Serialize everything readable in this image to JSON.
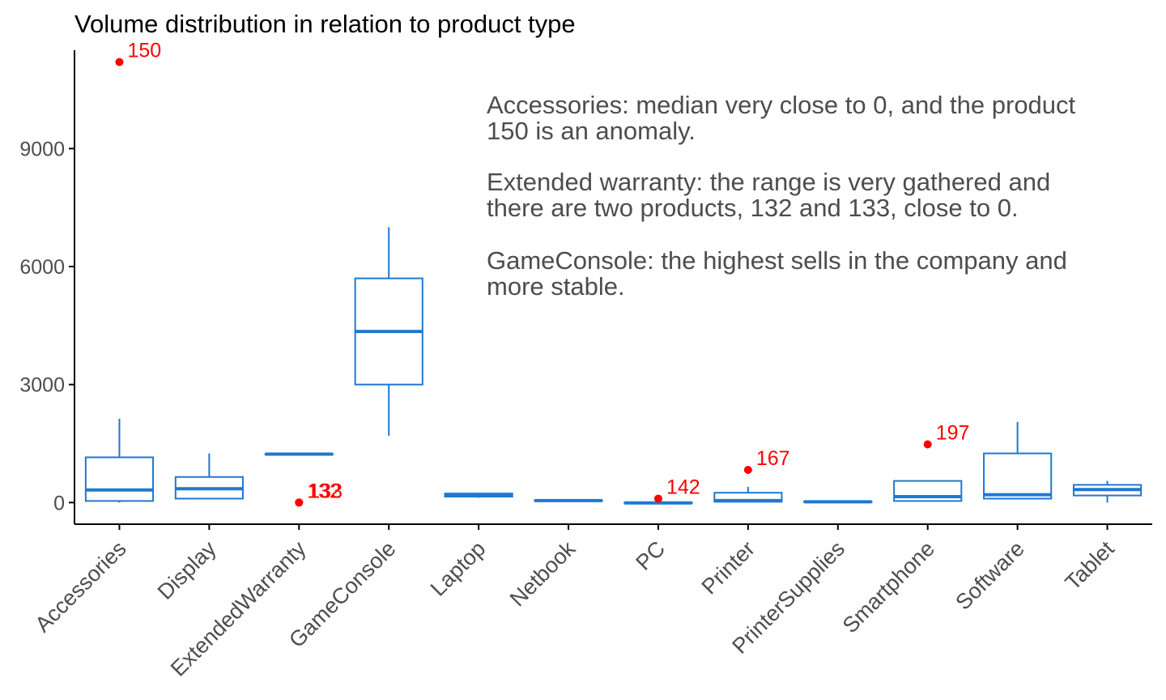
{
  "chart_data": {
    "type": "boxplot",
    "title": "Volume distribution in relation to product type",
    "xlabel": "",
    "ylabel": "",
    "ylim": [
      -550,
      11500
    ],
    "yticks": [
      0,
      3000,
      6000,
      9000
    ],
    "ytick_labels": [
      "0",
      "3000",
      "6000",
      "9000"
    ],
    "grid": false,
    "colors": {
      "box": "#1f78d1",
      "outlier": "#ff0000",
      "axis": "#000000",
      "text": "#4d4d4d"
    },
    "categories": [
      "Accessories",
      "Display",
      "ExtendedWarranty",
      "GameConsole",
      "Laptop",
      "Netbook",
      "PC",
      "Printer",
      "PrinterSupplies",
      "Smartphone",
      "Software",
      "Tablet"
    ],
    "boxes": [
      {
        "category": "Accessories",
        "whisker_low": 0,
        "q1": 40,
        "median": 320,
        "q3": 1150,
        "whisker_high": 2130
      },
      {
        "category": "Display",
        "whisker_low": 100,
        "q1": 100,
        "median": 350,
        "q3": 650,
        "whisker_high": 1250
      },
      {
        "category": "ExtendedWarranty",
        "whisker_low": 1232,
        "q1": 1232,
        "median": 1232,
        "q3": 1232,
        "whisker_high": 1232
      },
      {
        "category": "GameConsole",
        "whisker_low": 1700,
        "q1": 3000,
        "median": 4350,
        "q3": 5700,
        "whisker_high": 7000
      },
      {
        "category": "Laptop",
        "whisker_low": 120,
        "q1": 150,
        "median": 180,
        "q3": 230,
        "whisker_high": 250
      },
      {
        "category": "Netbook",
        "whisker_low": 40,
        "q1": 40,
        "median": 50,
        "q3": 60,
        "whisker_high": 60
      },
      {
        "category": "PC",
        "whisker_low": -20,
        "q1": -20,
        "median": -10,
        "q3": 0,
        "whisker_high": 10
      },
      {
        "category": "Printer",
        "whisker_low": 20,
        "q1": 20,
        "median": 50,
        "q3": 250,
        "whisker_high": 400
      },
      {
        "category": "PrinterSupplies",
        "whisker_low": 10,
        "q1": 10,
        "median": 20,
        "q3": 30,
        "whisker_high": 40
      },
      {
        "category": "Smartphone",
        "whisker_low": 20,
        "q1": 40,
        "median": 150,
        "q3": 550,
        "whisker_high": 550
      },
      {
        "category": "Software",
        "whisker_low": 100,
        "q1": 100,
        "median": 200,
        "q3": 1250,
        "whisker_high": 2050
      },
      {
        "category": "Tablet",
        "whisker_low": 0,
        "q1": 180,
        "median": 330,
        "q3": 450,
        "whisker_high": 550
      }
    ],
    "outliers": [
      {
        "category": "Accessories",
        "y": 11200,
        "label": "150"
      },
      {
        "category": "ExtendedWarranty",
        "y": 0,
        "label": "132"
      },
      {
        "category": "ExtendedWarranty",
        "y": 0,
        "label": "133"
      },
      {
        "category": "PC",
        "y": 100,
        "label": "142"
      },
      {
        "category": "Printer",
        "y": 830,
        "label": "167"
      },
      {
        "category": "Smartphone",
        "y": 1480,
        "label": "197"
      }
    ],
    "annotation_lines": [
      "Accessories: median very close to 0, and the product",
      "150 is an anomaly.",
      "Extended warranty: the range is very gathered and",
      "there are two products, 132 and 133, close to 0.",
      "GameConsole: the highest sells in the company and",
      "more stable."
    ]
  }
}
